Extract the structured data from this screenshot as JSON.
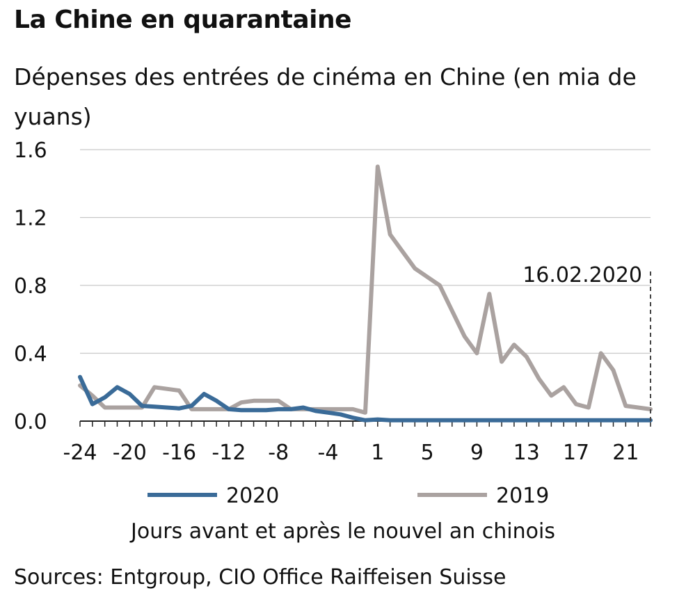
{
  "title": "La Chine en quarantaine",
  "subtitle": "Dépenses des entrées de cinéma en Chine (en mia de yuans)",
  "xlabel": "Jours avant et après le nouvel an chinois",
  "source": "Sources: Entgroup, CIO Office Raiffeisen Suisse",
  "colors": {
    "s2020": "#3a6b98",
    "s2019": "#aaa2a0",
    "grid": "#c8c8c8",
    "axis": "#222222"
  },
  "chart_data": {
    "type": "line",
    "title": "La Chine en quarantaine",
    "subtitle": "Dépenses des entrées de cinéma en Chine (en mia de yuans)",
    "xlabel": "Jours avant et après le nouvel an chinois",
    "ylabel": "",
    "ylim": [
      0,
      1.6
    ],
    "yticks": [
      "0.0",
      "0.4",
      "0.8",
      "1.2",
      "1.6"
    ],
    "xticks": [
      "-24",
      "-20",
      "-16",
      "-12",
      "-8",
      "-4",
      "1",
      "5",
      "9",
      "13",
      "17",
      "21"
    ],
    "grid": "horizontal",
    "legend": "bottom",
    "annotation": {
      "label": "16.02.2020",
      "x": 23
    },
    "x": [
      -24,
      -23,
      -22,
      -21,
      -20,
      -19,
      -18,
      -17,
      -16,
      -15,
      -14,
      -13,
      -12,
      -11,
      -10,
      -9,
      -8,
      -7,
      -6,
      -5,
      -4,
      -3,
      -2,
      -1,
      1,
      2,
      3,
      4,
      5,
      6,
      7,
      8,
      9,
      10,
      11,
      12,
      13,
      14,
      15,
      16,
      17,
      18,
      19,
      20,
      21,
      22,
      23
    ],
    "series": [
      {
        "name": "2020",
        "values": [
          0.26,
          0.1,
          0.14,
          0.2,
          0.16,
          0.09,
          0.085,
          0.08,
          0.075,
          0.09,
          0.16,
          0.12,
          0.07,
          0.065,
          0.065,
          0.065,
          0.07,
          0.07,
          0.08,
          0.06,
          0.05,
          0.04,
          0.02,
          0.005,
          0.01,
          0.005,
          0.005,
          0.005,
          0.005,
          0.005,
          0.005,
          0.005,
          0.005,
          0.005,
          0.005,
          0.005,
          0.005,
          0.005,
          0.005,
          0.005,
          0.005,
          0.005,
          0.005,
          0.005,
          0.005,
          0.005,
          0.005
        ]
      },
      {
        "name": "2019",
        "values": [
          0.21,
          0.15,
          0.08,
          0.08,
          0.08,
          0.08,
          0.2,
          0.19,
          0.18,
          0.07,
          0.07,
          0.07,
          0.07,
          0.11,
          0.12,
          0.12,
          0.12,
          0.07,
          0.07,
          0.07,
          0.07,
          0.07,
          0.07,
          0.05,
          1.5,
          1.1,
          1.0,
          0.9,
          0.85,
          0.8,
          0.65,
          0.5,
          0.4,
          0.75,
          0.35,
          0.45,
          0.38,
          0.25,
          0.15,
          0.2,
          0.1,
          0.08,
          0.4,
          0.3,
          0.09,
          0.08,
          0.07
        ]
      }
    ]
  }
}
